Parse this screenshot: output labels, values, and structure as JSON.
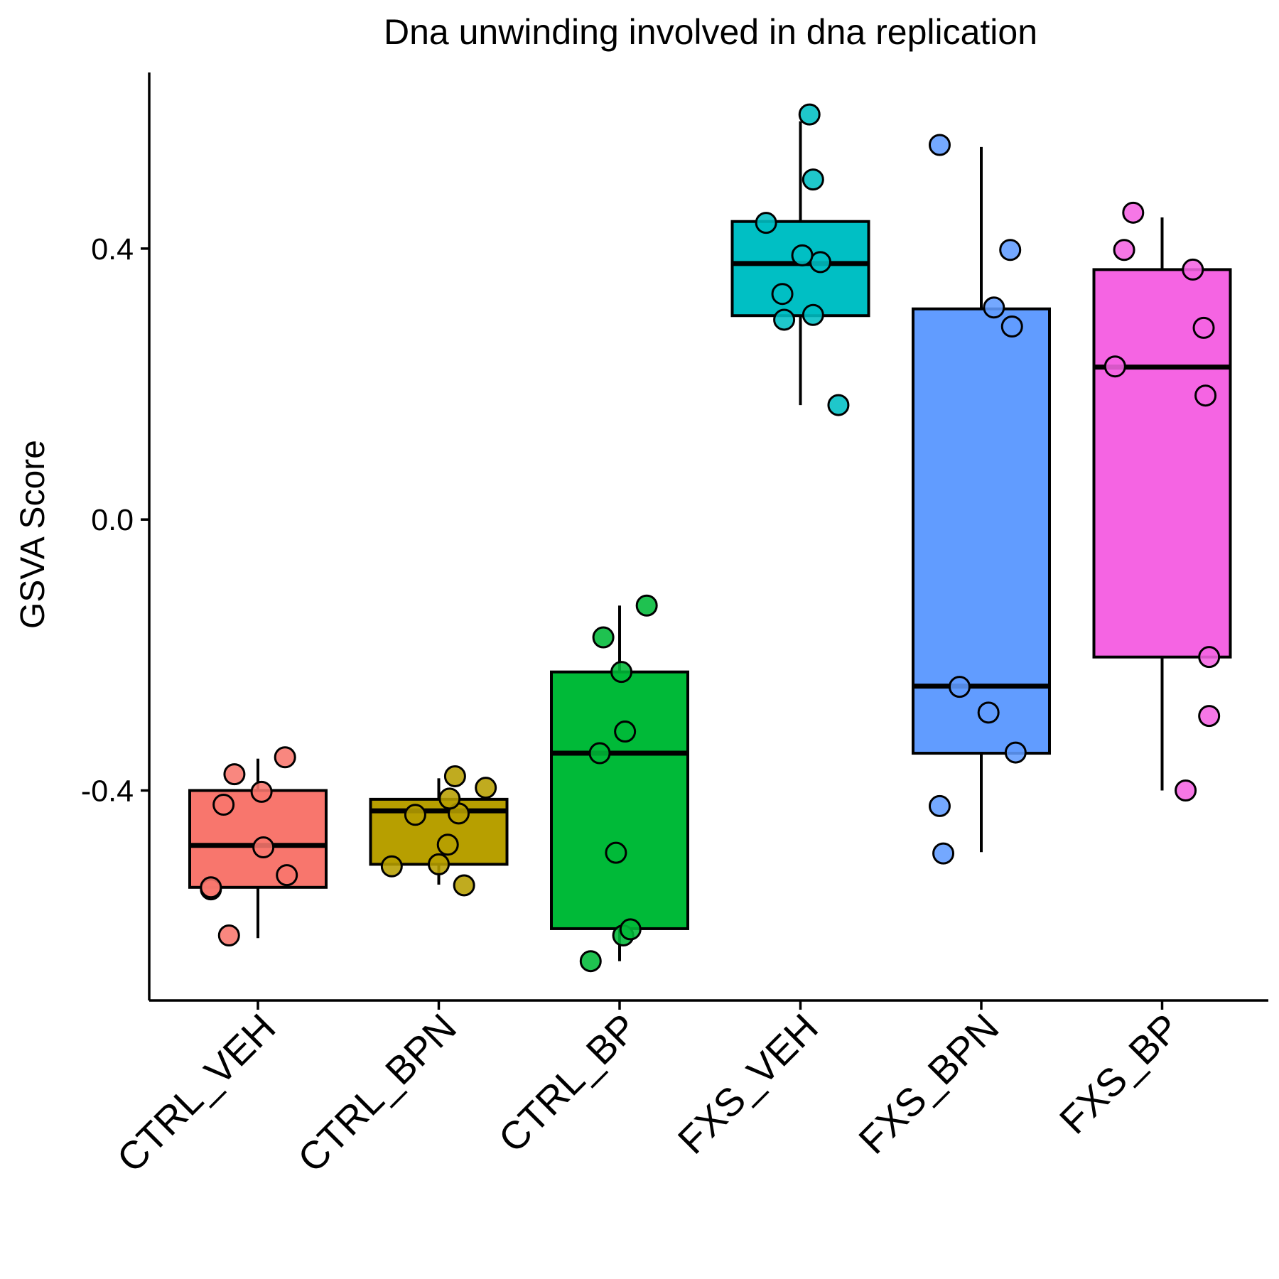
{
  "chart_data": {
    "type": "boxplot",
    "title": "Dna unwinding involved in dna replication",
    "xlabel": "",
    "ylabel": "GSVA Score",
    "ylim": [
      -0.71,
      0.66
    ],
    "yticks": [
      -0.4,
      0.0,
      0.4
    ],
    "ytick_labels": [
      "-0.4",
      "0.0",
      "0.4"
    ],
    "grid": false,
    "legend": "none",
    "categories": [
      "CTRL_VEH",
      "CTRL_BPN",
      "CTRL_BP",
      "FXS_VEH",
      "FXS_BPN",
      "FXS_BP"
    ],
    "colors": [
      "#F8766D",
      "#B79F00",
      "#00BA38",
      "#00BFC4",
      "#619CFF",
      "#F564E3"
    ],
    "boxes": [
      {
        "whisker_low": -0.618,
        "q1": -0.543,
        "median": -0.481,
        "q3": -0.4,
        "whisker_high": -0.353
      },
      {
        "whisker_low": -0.539,
        "q1": -0.509,
        "median": -0.43,
        "q3": -0.413,
        "whisker_high": -0.382
      },
      {
        "whisker_low": -0.652,
        "q1": -0.604,
        "median": -0.345,
        "q3": -0.225,
        "whisker_high": -0.127
      },
      {
        "whisker_low": 0.169,
        "q1": 0.301,
        "median": 0.378,
        "q3": 0.44,
        "whisker_high": 0.588
      },
      {
        "whisker_low": -0.491,
        "q1": -0.345,
        "median": -0.246,
        "q3": 0.311,
        "whisker_high": 0.55
      },
      {
        "whisker_low": -0.4,
        "q1": -0.203,
        "median": 0.225,
        "q3": 0.369,
        "whisker_high": 0.446
      }
    ],
    "points": [
      [
        -0.614,
        -0.546,
        -0.525,
        -0.484,
        -0.421,
        -0.402,
        -0.376,
        -0.351,
        -0.543
      ],
      [
        -0.512,
        -0.509,
        -0.48,
        -0.436,
        -0.434,
        -0.412,
        -0.396,
        -0.379,
        -0.54
      ],
      [
        -0.652,
        -0.614,
        -0.605,
        -0.492,
        -0.345,
        -0.313,
        -0.225,
        -0.174,
        -0.127
      ],
      [
        0.169,
        0.295,
        0.302,
        0.333,
        0.38,
        0.39,
        0.438,
        0.502,
        0.598
      ],
      [
        -0.493,
        -0.423,
        -0.344,
        -0.285,
        -0.247,
        0.285,
        0.313,
        0.398,
        0.553
      ],
      [
        -0.4,
        -0.29,
        -0.203,
        0.183,
        0.226,
        0.283,
        0.369,
        0.398,
        0.453
      ]
    ],
    "jitter": [
      [
        -0.16,
        -0.26,
        0.16,
        0.03,
        -0.19,
        0.02,
        -0.13,
        0.15,
        -0.26
      ],
      [
        -0.26,
        0.0,
        0.05,
        -0.13,
        0.11,
        0.06,
        0.26,
        0.09,
        0.14
      ],
      [
        -0.16,
        0.02,
        0.06,
        -0.02,
        -0.11,
        0.03,
        0.01,
        -0.09,
        0.15
      ],
      [
        0.21,
        -0.09,
        0.07,
        -0.1,
        0.11,
        0.01,
        -0.19,
        0.07,
        0.05
      ],
      [
        -0.21,
        -0.23,
        0.19,
        0.04,
        -0.12,
        0.17,
        0.07,
        0.16,
        -0.23
      ],
      [
        0.13,
        0.26,
        0.26,
        0.24,
        -0.26,
        0.23,
        0.17,
        -0.21,
        -0.16
      ]
    ]
  }
}
